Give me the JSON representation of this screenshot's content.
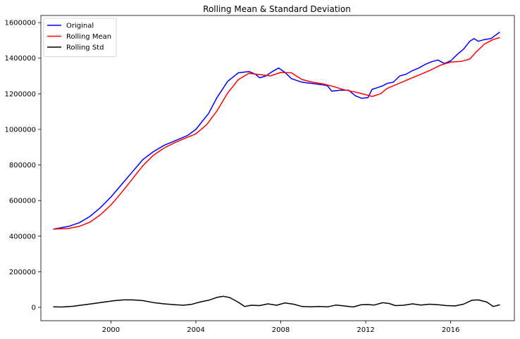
{
  "chart_data": {
    "type": "line",
    "title": "Rolling Mean & Standard Deviation",
    "xlabel": "",
    "ylabel": "",
    "xlim": [
      1996.7,
      2019.0
    ],
    "ylim": [
      -75000,
      1640000
    ],
    "x_ticks": [
      2000,
      2004,
      2008,
      2012,
      2016
    ],
    "x_tick_labels": [
      "2000",
      "2004",
      "2008",
      "2012",
      "2016"
    ],
    "y_ticks": [
      0,
      200000,
      400000,
      600000,
      800000,
      1000000,
      1200000,
      1400000,
      1600000
    ],
    "y_tick_labels": [
      "0",
      "200000",
      "400000",
      "600000",
      "800000",
      "1000000",
      "1200000",
      "1400000",
      "1600000"
    ],
    "grid": false,
    "legend_position": "top-left",
    "series": [
      {
        "name": "Original",
        "color": "#0000ff",
        "x": [
          1997.3,
          1998.0,
          1998.5,
          1999.0,
          1999.5,
          2000.0,
          2000.5,
          2001.0,
          2001.5,
          2002.0,
          2002.5,
          2003.0,
          2003.3,
          2003.6,
          2004.0,
          2004.3,
          2004.6,
          2005.0,
          2005.5,
          2006.0,
          2006.5,
          2006.8,
          2007.0,
          2007.3,
          2007.6,
          2007.9,
          2008.2,
          2008.5,
          2009.0,
          2009.5,
          2010.0,
          2010.2,
          2010.4,
          2010.8,
          2011.2,
          2011.5,
          2011.8,
          2012.1,
          2012.3,
          2012.5,
          2012.8,
          2013.0,
          2013.3,
          2013.6,
          2013.9,
          2014.2,
          2014.5,
          2014.8,
          2015.1,
          2015.4,
          2015.7,
          2016.0,
          2016.3,
          2016.6,
          2016.9,
          2017.1,
          2017.3,
          2017.6,
          2017.9,
          2018.1,
          2018.3
        ],
        "y": [
          440000,
          455000,
          475000,
          510000,
          560000,
          620000,
          690000,
          760000,
          830000,
          875000,
          910000,
          935000,
          950000,
          965000,
          1000000,
          1045000,
          1090000,
          1180000,
          1270000,
          1318000,
          1325000,
          1310000,
          1290000,
          1300000,
          1325000,
          1345000,
          1320000,
          1285000,
          1265000,
          1258000,
          1250000,
          1245000,
          1215000,
          1220000,
          1220000,
          1190000,
          1175000,
          1178000,
          1225000,
          1232000,
          1245000,
          1258000,
          1265000,
          1300000,
          1310000,
          1330000,
          1345000,
          1365000,
          1380000,
          1390000,
          1370000,
          1385000,
          1420000,
          1450000,
          1495000,
          1510000,
          1495000,
          1505000,
          1510000,
          1528000,
          1545000
        ]
      },
      {
        "name": "Rolling Mean",
        "color": "#ff0000",
        "x": [
          1997.3,
          1998.0,
          1998.5,
          1999.0,
          1999.5,
          2000.0,
          2000.5,
          2001.0,
          2001.5,
          2002.0,
          2002.5,
          2003.0,
          2003.5,
          2004.0,
          2004.5,
          2005.0,
          2005.5,
          2006.0,
          2006.5,
          2007.0,
          2007.5,
          2008.0,
          2008.5,
          2009.0,
          2009.5,
          2010.0,
          2010.5,
          2011.0,
          2011.5,
          2012.0,
          2012.3,
          2012.7,
          2013.0,
          2013.5,
          2014.0,
          2014.5,
          2015.0,
          2015.5,
          2016.0,
          2016.5,
          2016.9,
          2017.2,
          2017.6,
          2018.0,
          2018.3
        ],
        "y": [
          440000,
          443000,
          455000,
          478000,
          520000,
          575000,
          645000,
          720000,
          795000,
          855000,
          895000,
          925000,
          950000,
          975000,
          1025000,
          1105000,
          1205000,
          1280000,
          1315000,
          1308000,
          1300000,
          1320000,
          1318000,
          1280000,
          1265000,
          1255000,
          1240000,
          1222000,
          1210000,
          1195000,
          1185000,
          1200000,
          1230000,
          1255000,
          1280000,
          1305000,
          1330000,
          1360000,
          1378000,
          1382000,
          1395000,
          1435000,
          1480000,
          1505000,
          1515000
        ]
      },
      {
        "name": "Rolling Std",
        "color": "#000000",
        "x": [
          1997.3,
          1997.7,
          1998.2,
          1998.7,
          1999.2,
          1999.7,
          2000.2,
          2000.6,
          2001.0,
          2001.5,
          2002.0,
          2002.5,
          2003.0,
          2003.4,
          2003.8,
          2004.2,
          2004.6,
          2005.0,
          2005.3,
          2005.6,
          2006.0,
          2006.3,
          2006.6,
          2007.0,
          2007.4,
          2007.8,
          2008.2,
          2008.6,
          2009.0,
          2009.4,
          2009.8,
          2010.2,
          2010.6,
          2011.0,
          2011.4,
          2011.8,
          2012.1,
          2012.4,
          2012.8,
          2013.1,
          2013.4,
          2013.8,
          2014.2,
          2014.6,
          2015.0,
          2015.4,
          2015.8,
          2016.2,
          2016.6,
          2017.0,
          2017.3,
          2017.7,
          2018.0,
          2018.3
        ],
        "y": [
          3000,
          2000,
          6000,
          14000,
          22000,
          30000,
          38000,
          42000,
          42000,
          38000,
          27000,
          20000,
          15000,
          12000,
          17000,
          30000,
          40000,
          56000,
          62000,
          55000,
          28000,
          5000,
          12000,
          10000,
          20000,
          12000,
          25000,
          18000,
          5000,
          3000,
          5000,
          3000,
          13000,
          8000,
          2000,
          15000,
          16000,
          13000,
          26000,
          22000,
          10000,
          12000,
          20000,
          13000,
          18000,
          15000,
          10000,
          8000,
          18000,
          40000,
          42000,
          30000,
          5000,
          14000
        ]
      }
    ]
  }
}
